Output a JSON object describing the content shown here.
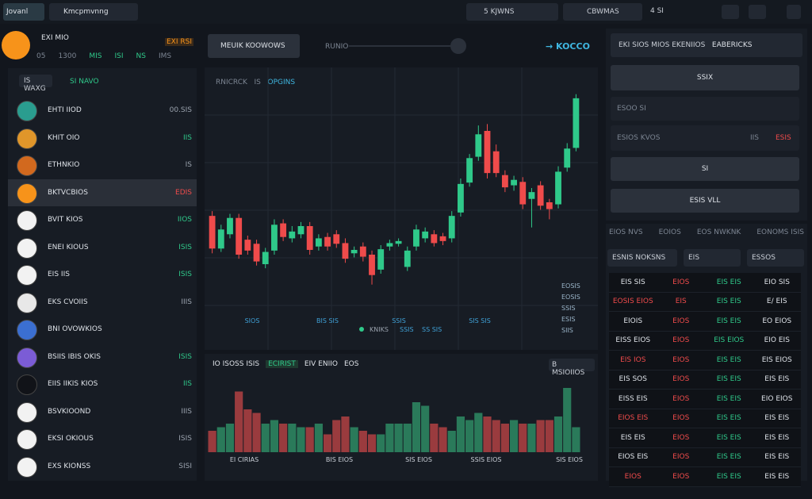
{
  "topbar": {
    "tabs": [
      "Jovanl",
      "Kmcpmvnng"
    ],
    "fields": [
      "5 KJWNS",
      "CBWMAS",
      "4 SI"
    ]
  },
  "sidebar": {
    "title": "EXI MIO",
    "badge": "EXI RSI",
    "stats": [
      "05",
      "1300",
      "MIS",
      "ISI",
      "NS",
      "IMS"
    ],
    "filter": [
      "IS WAXG",
      "SI NAVO"
    ],
    "coins": [
      {
        "name": "EHTI IIOD",
        "value": "00.SIS",
        "icon": "#2a9d8f",
        "trend": "flat"
      },
      {
        "name": "KHIT OIO",
        "value": "IIS",
        "icon": "#e0962a",
        "trend": "up"
      },
      {
        "name": "ETHNKIO",
        "value": "IS",
        "icon": "#d2691e",
        "trend": "flat"
      },
      {
        "name": "BKTVCBIOS",
        "value": "EDIS",
        "icon": "#f7931a",
        "trend": "down",
        "active": true
      },
      {
        "name": "BVIT KIOS",
        "value": "IIOS",
        "icon": "#f2f2f2",
        "trend": "up"
      },
      {
        "name": "ENEI KIOUS",
        "value": "ISIS",
        "icon": "#f2f2f2",
        "trend": "up"
      },
      {
        "name": "EIS IIS",
        "value": "ISIS",
        "icon": "#f2f2f2",
        "trend": "up"
      },
      {
        "name": "EKS CVOIIS",
        "value": "IIIS",
        "icon": "#e8e8e8",
        "trend": "flat"
      },
      {
        "name": "BNI OVOWKIOS",
        "icon": "#3b6fd1",
        "trend": "flat"
      },
      {
        "name": "BSIIS IBIS OKIS",
        "value": "ISIS",
        "icon": "#7b5cd6",
        "trend": "up"
      },
      {
        "name": "EIIS IIKIS KIOS",
        "value": "IIS",
        "icon": "#111318",
        "trend": "up"
      },
      {
        "name": "BSVKIOOND",
        "value": "IIIS",
        "icon": "#f2f2f2",
        "trend": "flat"
      },
      {
        "name": "EKSI OKIOUS",
        "value": "ISIS",
        "icon": "#f2f2f2",
        "trend": "flat"
      },
      {
        "name": "EXS KIONSS",
        "value": "SISI",
        "icon": "#f2f2f2",
        "trend": "flat"
      }
    ]
  },
  "chart": {
    "tabs": [
      "MEUIK KOOWOWS",
      "RUNIO"
    ],
    "price": "→ KOCCO",
    "legend": [
      "RNICRCK",
      "IS",
      "OPGINS"
    ],
    "type": "candlestick",
    "ylim": [
      0,
      350
    ],
    "open": [
      155,
      107,
      128,
      152,
      120,
      114,
      84,
      104,
      144,
      122,
      128,
      140,
      110,
      124,
      128,
      115,
      100,
      110,
      98,
      76,
      110,
      114,
      80,
      110,
      122,
      128,
      125,
      122,
      160,
      204,
      242,
      280,
      250,
      215,
      200,
      205,
      180,
      200,
      175,
      172,
      226,
      255
    ],
    "close": [
      107,
      135,
      152,
      98,
      104,
      88,
      102,
      142,
      124,
      132,
      140,
      105,
      122,
      110,
      114,
      92,
      105,
      95,
      68,
      106,
      115,
      118,
      104,
      135,
      132,
      115,
      118,
      155,
      202,
      240,
      275,
      218,
      218,
      197,
      208,
      172,
      190,
      170,
      165,
      220,
      254,
      328
    ],
    "high": [
      162,
      142,
      158,
      158,
      126,
      120,
      108,
      150,
      150,
      140,
      146,
      146,
      128,
      130,
      134,
      122,
      110,
      116,
      104,
      112,
      120,
      122,
      110,
      142,
      138,
      134,
      130,
      162,
      210,
      246,
      288,
      290,
      260,
      222,
      214,
      212,
      196,
      206,
      180,
      228,
      262,
      334
    ],
    "low": [
      100,
      102,
      122,
      92,
      98,
      82,
      78,
      98,
      118,
      116,
      122,
      98,
      104,
      104,
      108,
      86,
      94,
      88,
      54,
      70,
      104,
      110,
      74,
      104,
      116,
      110,
      112,
      116,
      154,
      198,
      236,
      210,
      212,
      190,
      192,
      165,
      138,
      164,
      150,
      166,
      220,
      250
    ],
    "x_labels": [
      "SIOS",
      "BIS SIS",
      "SSIS",
      "SIS SIS"
    ],
    "markers": [
      "KNIKS",
      "SSIS",
      "SS SIS"
    ],
    "price_labels": [
      "EOSIS",
      "EOSIS",
      "SSIS",
      "ESIS",
      "SIIS"
    ]
  },
  "volume": {
    "tabs": [
      "IO ISOSS ISIS",
      "ECIRIST",
      "EIV ENIIO",
      "EOS"
    ],
    "action": "B MSIOIIOS",
    "ylim": [
      0,
      100
    ],
    "values": [
      30,
      35,
      40,
      85,
      60,
      55,
      40,
      45,
      40,
      40,
      35,
      35,
      40,
      25,
      45,
      50,
      35,
      30,
      25,
      25,
      40,
      40,
      40,
      70,
      65,
      40,
      35,
      30,
      50,
      45,
      55,
      50,
      45,
      40,
      45,
      40,
      40,
      45,
      45,
      50,
      90,
      35
    ],
    "labels": [
      "EI CIRIAS",
      "BIS EIOS",
      "SIS EIOS",
      "SSIS EIOS",
      "SIS EIOS"
    ]
  },
  "order": {
    "pair": "EKI SIOS MIOS EKENIIOS",
    "side": "EABERICKS",
    "buy": "SSIX",
    "amount": "ESOO SI",
    "price": "ESIOS KVOS",
    "price_unit": "IIS",
    "price_value": "ESIS",
    "confirm": "SI",
    "sell": "ESIS VLL"
  },
  "orderbook": {
    "tabs": [
      "EIOS NVS",
      "EOIOS",
      "EOS NWKNK",
      "EONOMS ISIS"
    ],
    "filters": [
      "ESNIS NOKSNS",
      "EIS",
      "ESSOS"
    ],
    "rows": [
      [
        "EIS SIS",
        "EIOS",
        "EIS EIS",
        "EIO SIS"
      ],
      [
        "EOSIS EIOS",
        "EIS",
        "EIS EIS",
        "E/ EIS"
      ],
      [
        "EIOIS",
        "EIOS",
        "EIS EIS",
        "EO EIOS"
      ],
      [
        "EISS EIOS",
        "EIOS",
        "EIS EIOS",
        "EIO EIS"
      ],
      [
        "EIS IOS",
        "EIOS",
        "EIS EIS",
        "EIS EIOS"
      ],
      [
        "EIS SOS",
        "EIOS",
        "EIS EIS",
        "EIS EIS"
      ],
      [
        "EISS EIS",
        "EIOS",
        "EIS EIS",
        "EIO EIOS"
      ],
      [
        "EIOS EIS",
        "EIOS",
        "EIS EIS",
        "EIS EIS"
      ],
      [
        "EIS EIS",
        "EIOS",
        "EIS EIS",
        "EIS EIS"
      ],
      [
        "EIOS EIS",
        "EIOS",
        "EIS EIS",
        "EIS EIS"
      ],
      [
        "EIOS",
        "EIOS",
        "EIS EIS",
        "EIS EIS"
      ]
    ]
  }
}
